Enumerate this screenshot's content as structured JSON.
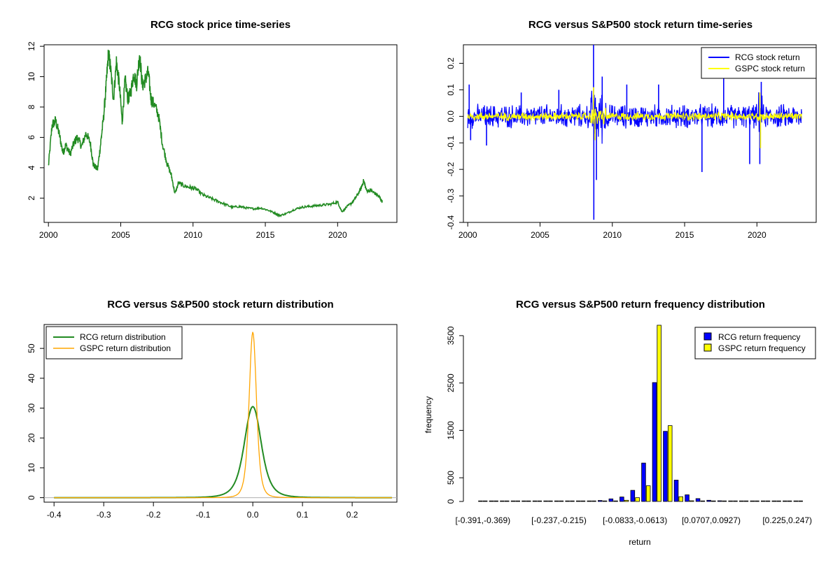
{
  "chart_data": [
    {
      "type": "line",
      "title": "RCG stock price time-series",
      "xlabel": "",
      "ylabel": "",
      "xlim": [
        1999.7,
        2024.1
      ],
      "ylim": [
        0.4,
        12.1
      ],
      "x_ticks": [
        2000,
        2005,
        2010,
        2015,
        2020
      ],
      "y_ticks": [
        2,
        4,
        6,
        8,
        10,
        12
      ],
      "colors": {
        "line": "#228B22"
      },
      "series": [
        {
          "x": [
            2000.0,
            2000.25,
            2000.5,
            2000.75,
            2001.0,
            2001.2,
            2001.5,
            2001.8,
            2002.0,
            2002.3,
            2002.6,
            2002.9,
            2003.1,
            2003.4,
            2003.6,
            2003.8,
            2004.0,
            2004.15,
            2004.3,
            2004.5,
            2004.7,
            2004.9,
            2005.1,
            2005.3,
            2005.5,
            2005.7,
            2005.9,
            2006.1,
            2006.3,
            2006.5,
            2006.7,
            2006.9,
            2007.1,
            2007.3,
            2007.6,
            2007.9,
            2008.2,
            2008.5,
            2008.75,
            2009.0,
            2009.4,
            2009.8,
            2010.2,
            2010.7,
            2011.2,
            2011.7,
            2012.2,
            2012.7,
            2013.2,
            2013.7,
            2014.2,
            2014.7,
            2015.2,
            2015.7,
            2016.0,
            2016.5,
            2017.0,
            2017.5,
            2018.0,
            2018.5,
            2019.0,
            2019.5,
            2020.0,
            2020.3,
            2020.6,
            2021.0,
            2021.3,
            2021.6,
            2021.8,
            2022.0,
            2022.3,
            2022.6,
            2022.9,
            2023.1
          ],
          "y": [
            4.1,
            6.8,
            7.1,
            6.2,
            5.0,
            5.5,
            4.9,
            5.7,
            6.0,
            5.4,
            6.3,
            5.6,
            4.2,
            3.9,
            5.5,
            7.2,
            9.5,
            11.6,
            10.5,
            8.5,
            11.0,
            9.5,
            7.0,
            9.8,
            8.5,
            9.0,
            10.2,
            9.5,
            11.5,
            9.4,
            9.8,
            10.3,
            8.5,
            8.2,
            7.5,
            5.5,
            4.3,
            3.5,
            2.3,
            3.0,
            2.8,
            2.7,
            2.6,
            2.2,
            2.0,
            1.8,
            1.6,
            1.4,
            1.45,
            1.35,
            1.3,
            1.35,
            1.2,
            1.0,
            0.85,
            1.0,
            1.25,
            1.4,
            1.45,
            1.5,
            1.55,
            1.6,
            1.75,
            1.1,
            1.4,
            1.7,
            2.1,
            2.6,
            3.15,
            2.5,
            2.5,
            2.3,
            2.05,
            1.75
          ]
        }
      ]
    },
    {
      "type": "line",
      "title": "RCG versus S&P500 stock return time-series",
      "xlabel": "",
      "ylabel": "",
      "xlim": [
        1999.7,
        2024.1
      ],
      "ylim": [
        -0.4,
        0.27
      ],
      "x_ticks": [
        2000,
        2005,
        2010,
        2015,
        2020
      ],
      "y_ticks": [
        -0.4,
        -0.3,
        -0.2,
        -0.1,
        0.0,
        0.1,
        0.2
      ],
      "y_tick_labels": [
        "-0.4",
        "-0.3",
        "-0.2",
        "-0.1",
        "0.0",
        "0.1",
        "0.2"
      ],
      "legend": {
        "position": "top-right"
      },
      "series": [
        {
          "name": "RCG stock return",
          "color": "#0000FF",
          "typical_amplitude": 0.035,
          "spikes": [
            [
              2000.1,
              0.12
            ],
            [
              2000.2,
              -0.09
            ],
            [
              2001.3,
              -0.11
            ],
            [
              2003.7,
              0.09
            ],
            [
              2006.3,
              0.1
            ],
            [
              2008.7,
              0.27
            ],
            [
              2008.72,
              -0.39
            ],
            [
              2008.9,
              -0.24
            ],
            [
              2009.3,
              0.15
            ],
            [
              2011.0,
              0.12
            ],
            [
              2013.2,
              0.12
            ],
            [
              2016.2,
              -0.21
            ],
            [
              2017.7,
              0.15
            ],
            [
              2019.5,
              -0.18
            ],
            [
              2020.2,
              -0.18
            ],
            [
              2020.3,
              0.13
            ]
          ]
        },
        {
          "name": "GSPC stock return",
          "color": "#FFFF00",
          "typical_amplitude": 0.012,
          "spikes": [
            [
              2008.7,
              0.11
            ],
            [
              2008.8,
              -0.09
            ],
            [
              2020.2,
              0.09
            ],
            [
              2020.25,
              -0.12
            ]
          ]
        }
      ]
    },
    {
      "type": "line",
      "title": "RCG versus S&P500 stock return distribution",
      "xlabel": "",
      "ylabel": "",
      "xlim": [
        -0.42,
        0.29
      ],
      "ylim": [
        -1.5,
        58
      ],
      "x_ticks": [
        -0.4,
        -0.3,
        -0.2,
        -0.1,
        0.0,
        0.1,
        0.2
      ],
      "x_tick_labels": [
        "-0.4",
        "-0.3",
        "-0.2",
        "-0.1",
        "0.0",
        "0.1",
        "0.2"
      ],
      "y_ticks": [
        0,
        10,
        20,
        30,
        40,
        50
      ],
      "legend": {
        "position": "top-left"
      },
      "series": [
        {
          "name": "RCG return distribution",
          "color": "#228B22",
          "peak": 30.5,
          "center": 0.0,
          "spread": 0.022
        },
        {
          "name": "GSPC return distribution",
          "color": "#FFA500",
          "peak": 55.5,
          "center": 0.0,
          "spread": 0.0095
        }
      ]
    },
    {
      "type": "bar",
      "title": "RCG versus S&P500 return frequency distribution",
      "xlabel": "return",
      "ylabel": "frequency",
      "ylim": [
        0,
        3720
      ],
      "y_ticks": [
        0,
        500,
        1500,
        2500,
        3500
      ],
      "legend": {
        "position": "top-right"
      },
      "category_labels_shown": [
        "[-0.391,-0.369)",
        "[-0.237,-0.215)",
        "[-0.0833,-0.0613)",
        "[0.0707,0.0927)",
        "[0.225,0.247)"
      ],
      "category_label_indices": [
        0,
        7,
        14,
        21,
        28
      ],
      "category_count": 30,
      "series": [
        {
          "name": "RCG return frequency",
          "color": "#0000FF",
          "values": [
            2,
            0,
            0,
            0,
            0,
            1,
            2,
            0,
            2,
            4,
            8,
            20,
            55,
            95,
            235,
            810,
            2510,
            1480,
            450,
            140,
            60,
            25,
            15,
            8,
            4,
            2,
            1,
            1,
            0,
            1
          ]
        },
        {
          "name": "GSPC return frequency",
          "color": "#FFFF00",
          "values": [
            0,
            0,
            0,
            0,
            0,
            0,
            0,
            0,
            0,
            0,
            1,
            2,
            8,
            25,
            80,
            330,
            3720,
            1600,
            100,
            15,
            4,
            2,
            1,
            0,
            0,
            0,
            0,
            0,
            0,
            0
          ]
        }
      ]
    }
  ]
}
